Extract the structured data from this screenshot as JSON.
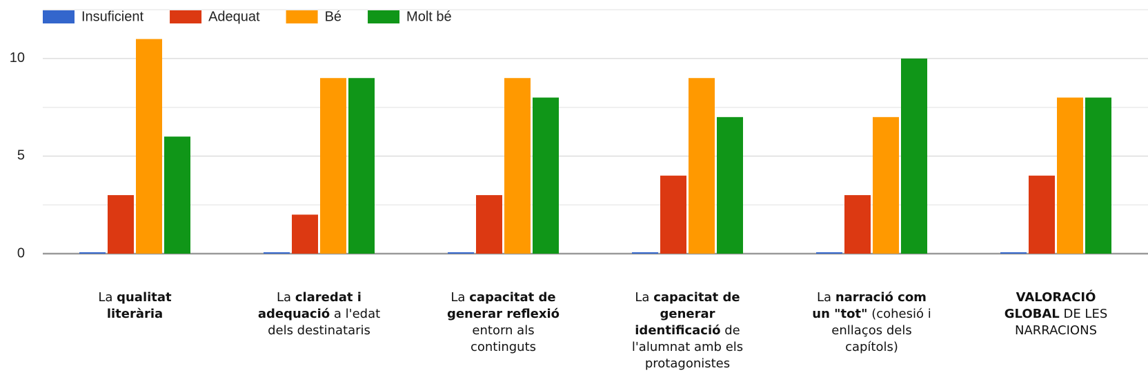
{
  "chart_data": {
    "type": "bar",
    "categories": [
      [
        {
          "text": "La ",
          "bold": false
        },
        {
          "text": "qualitat literària",
          "bold": true
        }
      ],
      [
        {
          "text": "La ",
          "bold": false
        },
        {
          "text": "claredat i adequació",
          "bold": true
        },
        {
          "text": " a l'edat dels destinataris",
          "bold": false
        }
      ],
      [
        {
          "text": "La ",
          "bold": false
        },
        {
          "text": "capacitat de generar reflexió",
          "bold": true
        },
        {
          "text": " entorn als continguts",
          "bold": false
        }
      ],
      [
        {
          "text": "La ",
          "bold": false
        },
        {
          "text": "capacitat de generar identificació",
          "bold": true
        },
        {
          "text": " de l'alumnat amb els protagonistes",
          "bold": false
        }
      ],
      [
        {
          "text": "La ",
          "bold": false
        },
        {
          "text": "narració com un \"tot\"",
          "bold": true
        },
        {
          "text": " (cohesió i enllaços dels capítols)",
          "bold": false
        }
      ],
      [
        {
          "text": "VALORACIÓ GLOBAL",
          "bold": true
        },
        {
          "text": " DE LES NARRACIONS",
          "bold": false
        }
      ]
    ],
    "series": [
      {
        "name": "Insuficient",
        "color": "#3366cc",
        "values": [
          0,
          0,
          0,
          0,
          0,
          0
        ]
      },
      {
        "name": "Adequat",
        "color": "#dc3912",
        "values": [
          3,
          2,
          3,
          4,
          3,
          4
        ]
      },
      {
        "name": "Bé",
        "color": "#ff9900",
        "values": [
          11,
          9,
          9,
          9,
          7,
          8
        ]
      },
      {
        "name": "Molt bé",
        "color": "#109618",
        "values": [
          6,
          9,
          8,
          7,
          10,
          8
        ]
      }
    ],
    "ylim": [
      0,
      13
    ],
    "yticks": [
      0,
      5,
      10
    ],
    "minor_yticks": [
      2.5,
      7.5,
      12.5
    ],
    "grid": true,
    "legend": "top"
  }
}
